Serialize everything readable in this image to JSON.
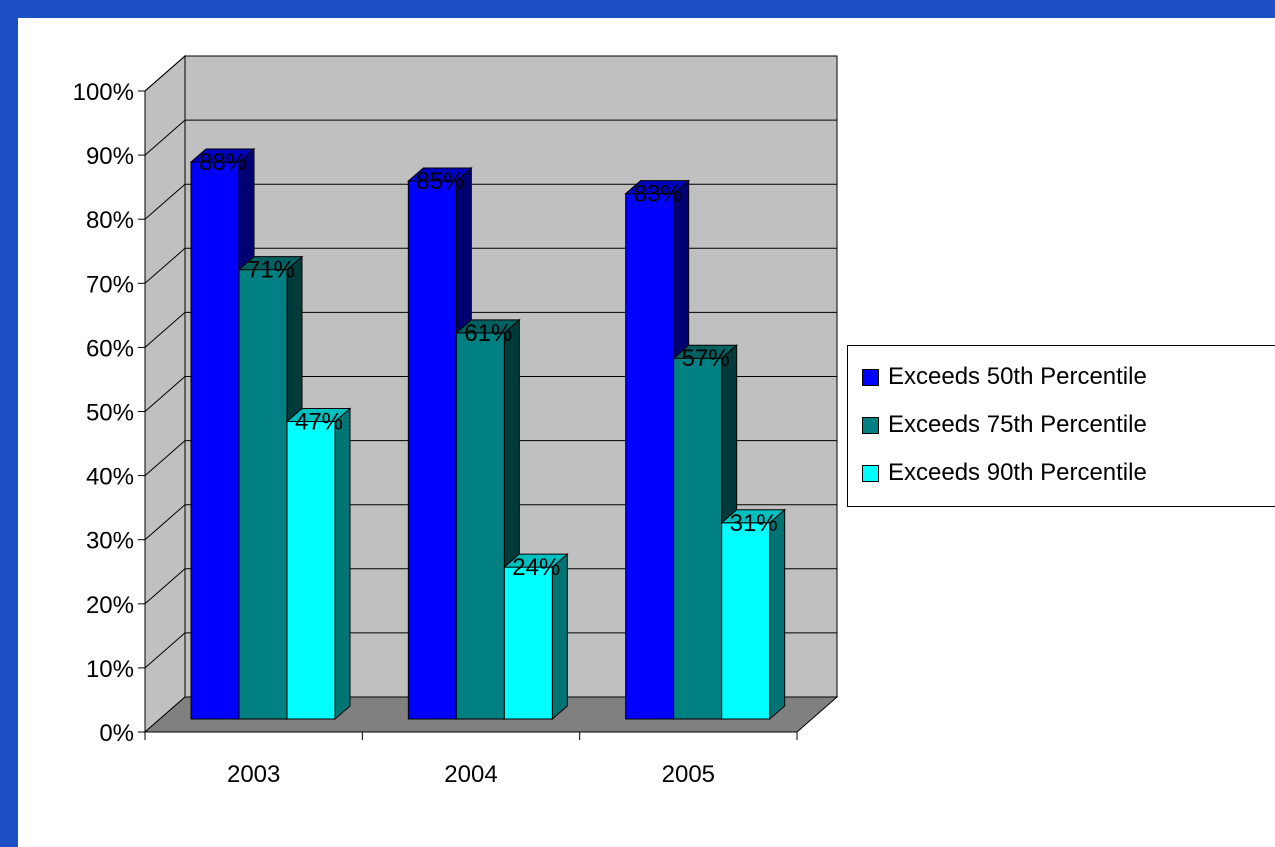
{
  "chart_data": {
    "type": "bar",
    "categories": [
      "2003",
      "2004",
      "2005"
    ],
    "series": [
      {
        "name": "Exceeds 50th Percentile",
        "values": [
          88,
          85,
          83
        ],
        "labels": [
          "88%",
          "85%",
          "83%"
        ],
        "color": "#0000ff"
      },
      {
        "name": "Exceeds 75th Percentile",
        "values": [
          71,
          61,
          57
        ],
        "labels": [
          "71%",
          "61%",
          "57%"
        ],
        "color": "#008080"
      },
      {
        "name": "Exceeds 90th Percentile",
        "values": [
          47,
          24,
          31
        ],
        "labels": [
          "47%",
          "24%",
          "31%"
        ],
        "color": "#00ffff"
      }
    ],
    "y_ticks": [
      "0%",
      "10%",
      "20%",
      "30%",
      "40%",
      "50%",
      "60%",
      "70%",
      "80%",
      "90%",
      "100%"
    ],
    "ylim": [
      0,
      100
    ],
    "grid": true,
    "three_d": true,
    "legend_position": "right",
    "colors": {
      "wall": "#c0c0c0",
      "floor": "#808080",
      "frame": "#1f4fc4"
    }
  }
}
